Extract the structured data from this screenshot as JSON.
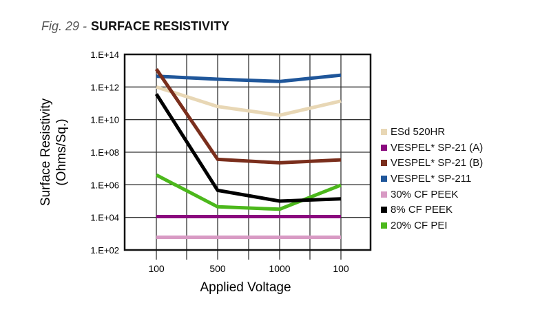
{
  "title": {
    "fig": "Fig. 29 -",
    "main": "SURFACE RESISTIVITY"
  },
  "chart_data": {
    "type": "line",
    "ylabel_line1": "Surface Resistivity",
    "ylabel_line2": "(Ohms/Sq.)",
    "xlabel": "Applied Voltage",
    "categories": [
      "100",
      "500",
      "1000",
      "100"
    ],
    "y_scale": "log",
    "ylim": [
      "1.E+02",
      "1.E+14"
    ],
    "ylim_log10": [
      2,
      14
    ],
    "y_ticks": [
      "1.E+14",
      "1.E+12",
      "1.E+10",
      "1.E+08",
      "1.E+06",
      "1.E+04",
      "1.E+02"
    ],
    "grid": true,
    "legend_placement": "right",
    "series_values_unit": "log10(Ohms/Sq.)",
    "series": [
      {
        "name": "ESd 520HR",
        "color": "#e8d7b5",
        "log10_values": [
          12.0,
          10.8,
          10.27,
          11.14
        ]
      },
      {
        "name": "VESPEL* SP-21 (A)",
        "color": "#8a0a7e",
        "log10_values": [
          4.05,
          4.05,
          4.05,
          4.05
        ]
      },
      {
        "name": "VESPEL* SP-21 (B)",
        "color": "#7a2e1c",
        "log10_values": [
          13.1,
          7.56,
          7.35,
          7.53
        ]
      },
      {
        "name": "VESPEL* SP-211",
        "color": "#1f569a",
        "log10_values": [
          12.66,
          12.48,
          12.34,
          12.73
        ]
      },
      {
        "name": "30% CF PEEK",
        "color": "#d89ac4",
        "log10_values": [
          2.78,
          2.78,
          2.78,
          2.78
        ]
      },
      {
        "name": "8% CF PEEK",
        "color": "#000000",
        "log10_values": [
          11.57,
          5.66,
          5.0,
          5.14
        ]
      },
      {
        "name": "20% CF PEI",
        "color": "#4cb81c",
        "log10_values": [
          6.6,
          4.65,
          4.5,
          5.98
        ]
      }
    ]
  }
}
